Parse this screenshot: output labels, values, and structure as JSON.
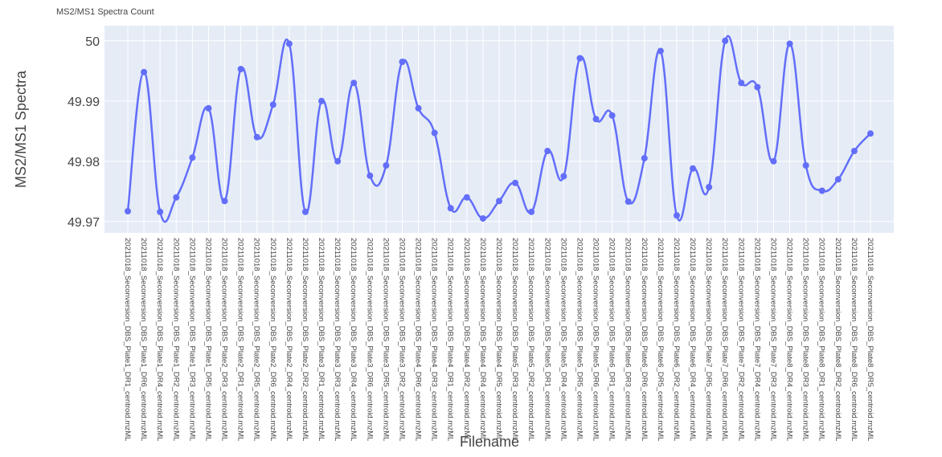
{
  "chart_data": {
    "type": "line",
    "title": "MS2/MS1 Spectra Count",
    "x_label": "Filename",
    "y_label": "MS2/MS1 Spectra",
    "categories": [
      "20211018_Seconversion_DBS_Plate1_DR1_centroid.mzML",
      "20211018_Seconversion_DBS_Plate1_DR6_centroid.mzML",
      "20211018_Seconversion_DBS_Plate1_DR4_centroid.mzML",
      "20211018_Seconversion_DBS_Plate1_DR2_centroid.mzML",
      "20211018_Seconversion_DBS_Plate1_DR3_centroid.mzML",
      "20211018_Seconversion_DBS_Plate1_DR5_centroid.mzML",
      "20211018_Seconversion_DBS_Plate2_DR3_centroid.mzML",
      "20211018_Seconversion_DBS_Plate2_DR1_centroid.mzML",
      "20211018_Seconversion_DBS_Plate2_DR5_centroid.mzML",
      "20211018_Seconversion_DBS_Plate2_DR6_centroid.mzML",
      "20211018_Seconversion_DBS_Plate2_DR4_centroid.mzML",
      "20211018_Seconversion_DBS_Plate2_DR2_centroid.mzML",
      "20211018_Seconversion_DBS_Plate3_DR1_centroid.mzML",
      "20211018_Seconversion_DBS_Plate3_DR3_centroid.mzML",
      "20211018_Seconversion_DBS_Plate3_DR4_centroid.mzML",
      "20211018_Seconversion_DBS_Plate3_DR6_centroid.mzML",
      "20211018_Seconversion_DBS_Plate3_DR5_centroid.mzML",
      "20211018_Seconversion_DBS_Plate3_DR2_centroid.mzML",
      "20211018_Seconversion_DBS_Plate4_DR6_centroid.mzML",
      "20211018_Seconversion_DBS_Plate4_DR3_centroid.mzML",
      "20211018_Seconversion_DBS_Plate4_DR1_centroid.mzML",
      "20211018_Seconversion_DBS_Plate4_DR2_centroid.mzML",
      "20211018_Seconversion_DBS_Plate4_DR4_centroid.mzML",
      "20211018_Seconversion_DBS_Plate4_DR5_centroid.mzML",
      "20211018_Seconversion_DBS_Plate5_DR3_centroid.mzML",
      "20211018_Seconversion_DBS_Plate5_DR2_centroid.mzML",
      "20211018_Seconversion_DBS_Plate5_DR1_centroid.mzML",
      "20211018_Seconversion_DBS_Plate5_DR4_centroid.mzML",
      "20211018_Seconversion_DBS_Plate5_DR5_centroid.mzML",
      "20211018_Seconversion_DBS_Plate5_DR6_centroid.mzML",
      "20211018_Seconversion_DBS_Plate6_DR1_centroid.mzML",
      "20211018_Seconversion_DBS_Plate6_DR3_centroid.mzML",
      "20211018_Seconversion_DBS_Plate6_DR6_centroid.mzML",
      "20211018_Seconversion_DBS_Plate6_DR5_centroid.mzML",
      "20211018_Seconversion_DBS_Plate6_DR2_centroid.mzML",
      "20211018_Seconversion_DBS_Plate6_DR4_centroid.mzML",
      "20211018_Seconversion_DBS_Plate7_DR5_centroid.mzML",
      "20211018_Seconversion_DBS_Plate7_DR6_centroid.mzML",
      "20211018_Seconversion_DBS_Plate7_DR2_centroid.mzML",
      "20211018_Seconversion_DBS_Plate7_DR4_centroid.mzML",
      "20211018_Seconversion_DBS_Plate7_DR3_centroid.mzML",
      "20211018_Seconversion_DBS_Plate8_DR4_centroid.mzML",
      "20211018_Seconversion_DBS_Plate8_DR3_centroid.mzML",
      "20211018_Seconversion_DBS_Plate8_DR1_centroid.mzML",
      "20211018_Seconversion_DBS_Plate8_DR2_centroid.mzML",
      "20211018_Seconversion_DBS_Plate8_DR6_centroid.mzML",
      "20211018_Seconversion_DBS_Plate8_DR5_centroid.mzML"
    ],
    "values": [
      49.9717,
      49.9948,
      49.9716,
      49.974,
      49.9806,
      49.9888,
      49.9734,
      49.9953,
      49.984,
      49.9894,
      49.9995,
      49.9716,
      49.99,
      49.98,
      49.993,
      49.9776,
      49.9793,
      49.9965,
      49.9888,
      49.9847,
      49.9722,
      49.974,
      49.9705,
      49.9734,
      49.9764,
      49.9716,
      49.9817,
      49.9775,
      49.9971,
      49.987,
      49.9876,
      49.9733,
      49.9805,
      49.9983,
      49.971,
      49.9788,
      49.9757,
      50.0,
      49.993,
      49.9923,
      49.98,
      49.9995,
      49.9793,
      49.9751,
      49.977,
      49.9817,
      49.9846
    ],
    "color": "#636efa",
    "ylim": [
      49.9681,
      50.0025
    ],
    "yticks": [
      49.97,
      49.98,
      49.99,
      50
    ],
    "grid": true
  }
}
